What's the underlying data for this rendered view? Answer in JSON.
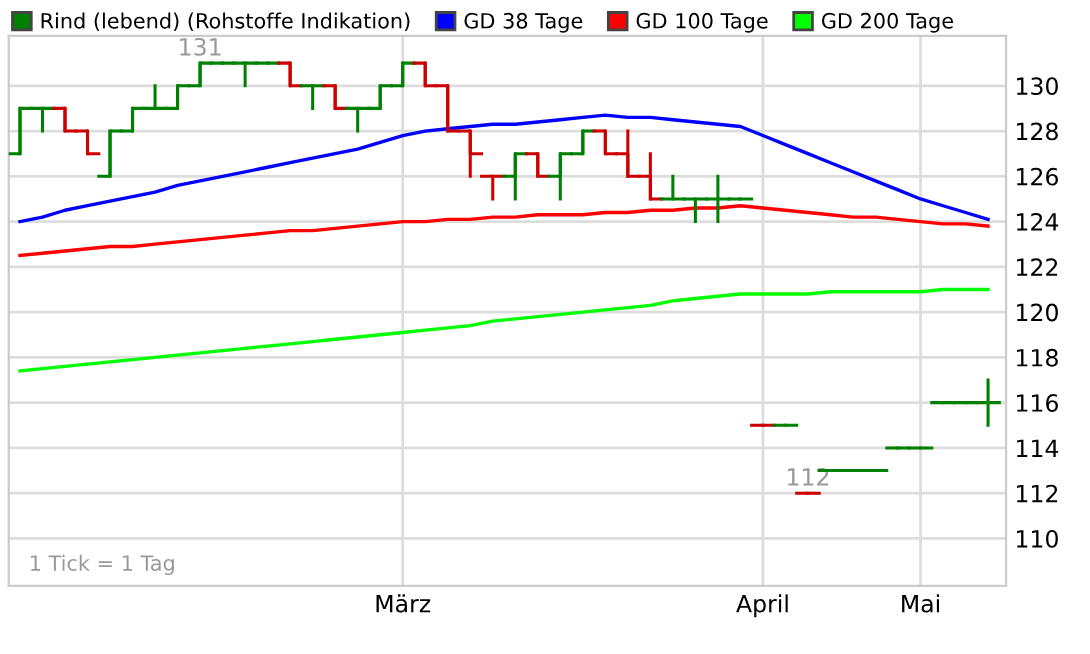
{
  "chart_data": {
    "type": "candlestick",
    "categories": [
      null,
      null,
      null,
      null,
      null,
      null,
      null,
      null,
      null,
      null,
      null,
      null,
      null,
      null,
      null,
      null,
      null,
      "März",
      null,
      null,
      null,
      null,
      null,
      null,
      null,
      null,
      null,
      null,
      null,
      null,
      null,
      null,
      null,
      "April",
      null,
      null,
      null,
      null,
      null,
      null,
      "Mai",
      null,
      null,
      null
    ],
    "series": [
      {
        "name": "Rind (lebend) (Rohstoffe Indikation)",
        "color": "#008000",
        "ohlc": [
          [
            127,
            129,
            127,
            129
          ],
          [
            129,
            129,
            128,
            129
          ],
          [
            129,
            129,
            128,
            128
          ],
          [
            128,
            128,
            127,
            127
          ],
          [
            126,
            128,
            126,
            128
          ],
          [
            128,
            129,
            128,
            129
          ],
          [
            129,
            130,
            129,
            129
          ],
          [
            129,
            130,
            129,
            130
          ],
          [
            130,
            131,
            130,
            131
          ],
          [
            131,
            131,
            131,
            131
          ],
          [
            131,
            131,
            130,
            131
          ],
          [
            131,
            131,
            131,
            131
          ],
          [
            131,
            131,
            130,
            130
          ],
          [
            130,
            130,
            129,
            130
          ],
          [
            130,
            130,
            129,
            129
          ],
          [
            129,
            129,
            128,
            129
          ],
          [
            129,
            130,
            129,
            130
          ],
          [
            130,
            131,
            130,
            131
          ],
          [
            131,
            131,
            130,
            130
          ],
          [
            130,
            130,
            128,
            128
          ],
          [
            128,
            128,
            126,
            127
          ],
          [
            126,
            126,
            125,
            126
          ],
          [
            126,
            127,
            125,
            127
          ],
          [
            127,
            127,
            126,
            126
          ],
          [
            126,
            127,
            125,
            127
          ],
          [
            127,
            128,
            127,
            128
          ],
          [
            128,
            128,
            127,
            127
          ],
          [
            127,
            128,
            126,
            126
          ],
          [
            126,
            127,
            125,
            125
          ],
          [
            125,
            126,
            125,
            125
          ],
          [
            125,
            125,
            124,
            125
          ],
          [
            125,
            126,
            124,
            125
          ],
          [
            125,
            125,
            125,
            125
          ],
          [
            115,
            115,
            115,
            115
          ],
          [
            115,
            115,
            115,
            115
          ],
          [
            112,
            112,
            112,
            112
          ],
          [
            113,
            113,
            113,
            113
          ],
          [
            113,
            113,
            113,
            113
          ],
          [
            113,
            113,
            113,
            113
          ],
          [
            114,
            114,
            114,
            114
          ],
          [
            114,
            114,
            114,
            114
          ],
          [
            116,
            116,
            116,
            116
          ],
          [
            116,
            116,
            116,
            116
          ],
          [
            116,
            117,
            115,
            116
          ]
        ],
        "colors": [
          "#008000",
          "#008000",
          "#cc0000",
          "#cc0000",
          "#008000",
          "#008000",
          "#008000",
          "#008000",
          "#008000",
          "#008000",
          "#008000",
          "#008000",
          "#cc0000",
          "#008000",
          "#cc0000",
          "#008000",
          "#008000",
          "#008000",
          "#cc0000",
          "#cc0000",
          "#cc0000",
          "#cc0000",
          "#008000",
          "#cc0000",
          "#008000",
          "#008000",
          "#cc0000",
          "#cc0000",
          "#cc0000",
          "#008000",
          "#008000",
          "#008000",
          "#008000",
          "#cc0000",
          "#008000",
          "#cc0000",
          "#008000",
          "#008000",
          "#008000",
          "#008000",
          "#008000",
          "#008000",
          "#008000",
          "#008000"
        ]
      },
      {
        "type": "line",
        "name": "GD 38 Tage",
        "color": "#0000ff",
        "values": [
          124.0,
          124.2,
          124.5,
          124.7,
          124.9,
          125.1,
          125.3,
          125.6,
          125.8,
          126.0,
          126.2,
          126.4,
          126.6,
          126.8,
          127.0,
          127.2,
          127.5,
          127.8,
          128.0,
          128.1,
          128.2,
          128.3,
          128.3,
          128.4,
          128.5,
          128.6,
          128.7,
          128.6,
          128.6,
          128.5,
          128.4,
          128.3,
          128.2,
          127.8,
          127.4,
          127.0,
          126.6,
          126.2,
          125.8,
          125.4,
          125.0,
          124.7,
          124.4,
          124.1
        ]
      },
      {
        "type": "line",
        "name": "GD 100 Tage",
        "color": "#ff0000",
        "values": [
          122.5,
          122.6,
          122.7,
          122.8,
          122.9,
          122.9,
          123.0,
          123.1,
          123.2,
          123.3,
          123.4,
          123.5,
          123.6,
          123.6,
          123.7,
          123.8,
          123.9,
          124.0,
          124.0,
          124.1,
          124.1,
          124.2,
          124.2,
          124.3,
          124.3,
          124.3,
          124.4,
          124.4,
          124.5,
          124.5,
          124.6,
          124.6,
          124.7,
          124.6,
          124.5,
          124.4,
          124.3,
          124.2,
          124.2,
          124.1,
          124.0,
          123.9,
          123.9,
          123.8
        ]
      },
      {
        "type": "line",
        "name": "GD 200 Tage",
        "color": "#00ff00",
        "values": [
          117.4,
          117.5,
          117.6,
          117.7,
          117.8,
          117.9,
          118.0,
          118.1,
          118.2,
          118.3,
          118.4,
          118.5,
          118.6,
          118.7,
          118.8,
          118.9,
          119.0,
          119.1,
          119.2,
          119.3,
          119.4,
          119.6,
          119.7,
          119.8,
          119.9,
          120.0,
          120.1,
          120.2,
          120.3,
          120.5,
          120.6,
          120.7,
          120.8,
          120.8,
          120.8,
          120.8,
          120.9,
          120.9,
          120.9,
          120.9,
          120.9,
          121.0,
          121.0,
          121.0
        ]
      }
    ],
    "ylim": [
      107.9,
      132.2
    ],
    "yticks": [
      110,
      112,
      114,
      116,
      118,
      120,
      122,
      124,
      126,
      128,
      130
    ],
    "grid": true,
    "legend": "top",
    "annotations": [
      {
        "text": "131",
        "y": 131
      },
      {
        "text": "112",
        "y": 112
      },
      "1 Tick = 1 Tag"
    ]
  }
}
